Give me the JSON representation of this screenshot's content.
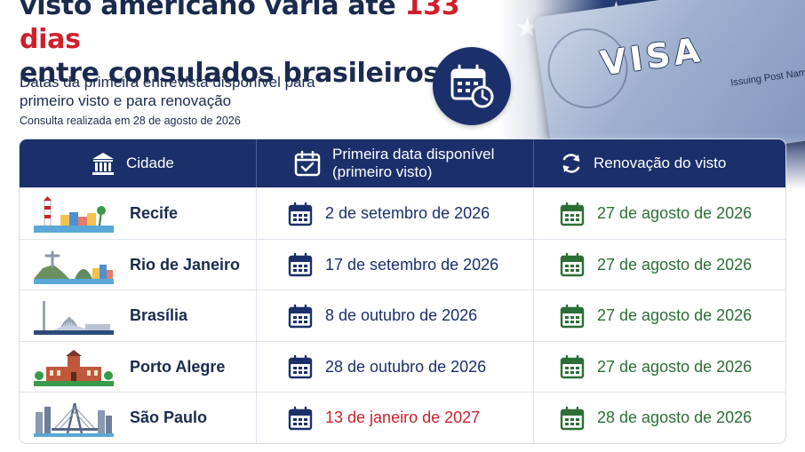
{
  "header": {
    "title_line1_prefix": "visto americano varia até ",
    "title_line1_highlight": "133 dias",
    "title_line2": "entre consulados brasileiros",
    "subtitle": "Datas da primeira entrevista disponível para primeiro visto e para renovação",
    "consulta": "Consulta realizada em 28 de agosto de 2026",
    "calendar_badge_icon": "calendar-clock-icon"
  },
  "visa_art": {
    "word": "VISA",
    "issuing": "Issuing Post Name"
  },
  "colors": {
    "navy": "#1b2f6b",
    "highlight_red": "#d01f2b",
    "renewal_green": "#2c6e35"
  },
  "table": {
    "headers": {
      "city": "Cidade",
      "first_date_line1": "Primeira data disponível",
      "first_date_line2": "(primeiro visto)",
      "renewal": "Renovação do visto"
    },
    "header_icons": [
      "building-icon",
      "calendar-check-icon",
      "refresh-icon"
    ],
    "rows": [
      {
        "city": "Recife",
        "first": "2 de setembro de 2026",
        "renewal": "27 de agosto de 2026",
        "first_highlight": false,
        "illustration": "lighthouse-skyline-icon"
      },
      {
        "city": "Rio de Janeiro",
        "first": "17 de setembro de 2026",
        "renewal": "27 de agosto de 2026",
        "first_highlight": false,
        "illustration": "christ-redeemer-skyline-icon"
      },
      {
        "city": "Brasília",
        "first": "8 de outubro de 2026",
        "renewal": "27 de agosto de 2026",
        "first_highlight": false,
        "illustration": "cathedral-skyline-icon"
      },
      {
        "city": "Porto Alegre",
        "first": "28 de outubro de 2026",
        "renewal": "27 de agosto de 2026",
        "first_highlight": false,
        "illustration": "historic-building-icon"
      },
      {
        "city": "São Paulo",
        "first": "13 de janeiro de 2027",
        "renewal": "28 de agosto de 2026",
        "first_highlight": true,
        "illustration": "bridge-skyline-icon"
      }
    ]
  }
}
